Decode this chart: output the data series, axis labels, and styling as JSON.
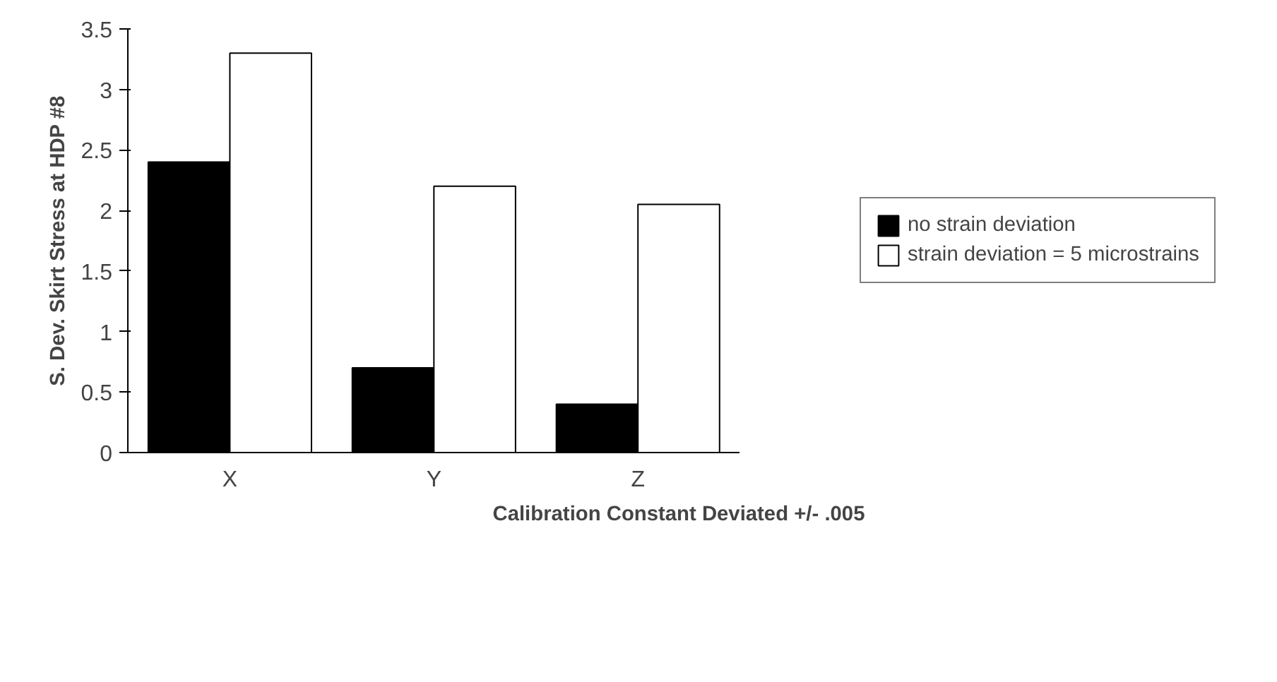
{
  "chart_data": {
    "type": "bar",
    "xlabel": "Calibration Constant Deviated +/- .005",
    "ylabel": "S. Dev. Skirt Stress at HDP #8",
    "categories": [
      "X",
      "Y",
      "Z"
    ],
    "series": [
      {
        "name": "no strain deviation",
        "color": "#000000",
        "values": [
          2.4,
          0.7,
          0.4
        ]
      },
      {
        "name": "strain deviation = 5 microstrains",
        "color": "#ffffff",
        "values": [
          3.3,
          2.2,
          2.05
        ]
      }
    ],
    "ylim": [
      0,
      3.5
    ],
    "yticks": [
      0,
      0.5,
      1,
      1.5,
      2,
      2.5,
      3,
      3.5
    ],
    "grid": false,
    "legend": "right"
  }
}
